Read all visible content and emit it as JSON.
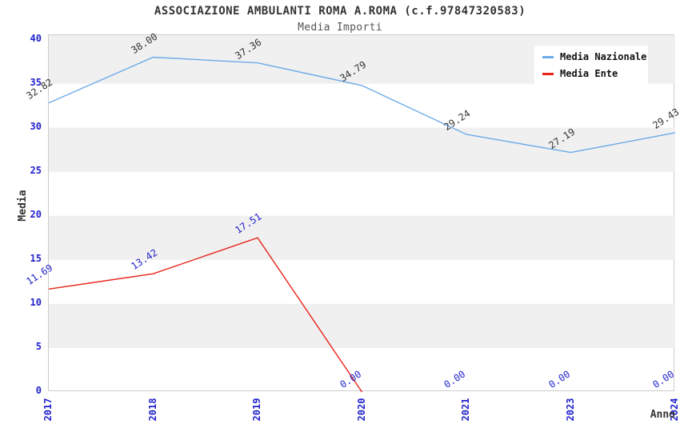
{
  "title": "ASSOCIAZIONE AMBULANTI ROMA A.ROMA (c.f.97847320583)",
  "subtitle": "Media Importi",
  "chart_data": {
    "type": "line",
    "categories": [
      "2017",
      "2018",
      "2019",
      "2020",
      "2021",
      "2023",
      "2024"
    ],
    "series": [
      {
        "name": "Media Nazionale",
        "color": "#6caae8",
        "label_color": "#333333",
        "values": [
          32.82,
          38.0,
          37.36,
          34.79,
          29.24,
          27.19,
          29.43
        ],
        "draw_through_index": 6
      },
      {
        "name": "Media Ente",
        "color": "#e8231a",
        "label_color": "#2222cc",
        "values": [
          11.69,
          13.42,
          17.51,
          0.0,
          0.0,
          0.0,
          0.0
        ],
        "draw_through_index": 3
      }
    ],
    "xlabel": "Anno",
    "ylabel": "Media",
    "ylim": [
      0,
      40.5
    ],
    "yticks": [
      0,
      5,
      10,
      15,
      20,
      25,
      30,
      35,
      40
    ],
    "grid": "striped-bands",
    "legend_position": "top-right",
    "colors": {
      "tick_label": "#2222cc",
      "band_gray": "#f0f0f0",
      "plot_border": "#cccccc",
      "title": "#333333",
      "subtitle": "#555555",
      "legend_text": "#111111"
    }
  }
}
